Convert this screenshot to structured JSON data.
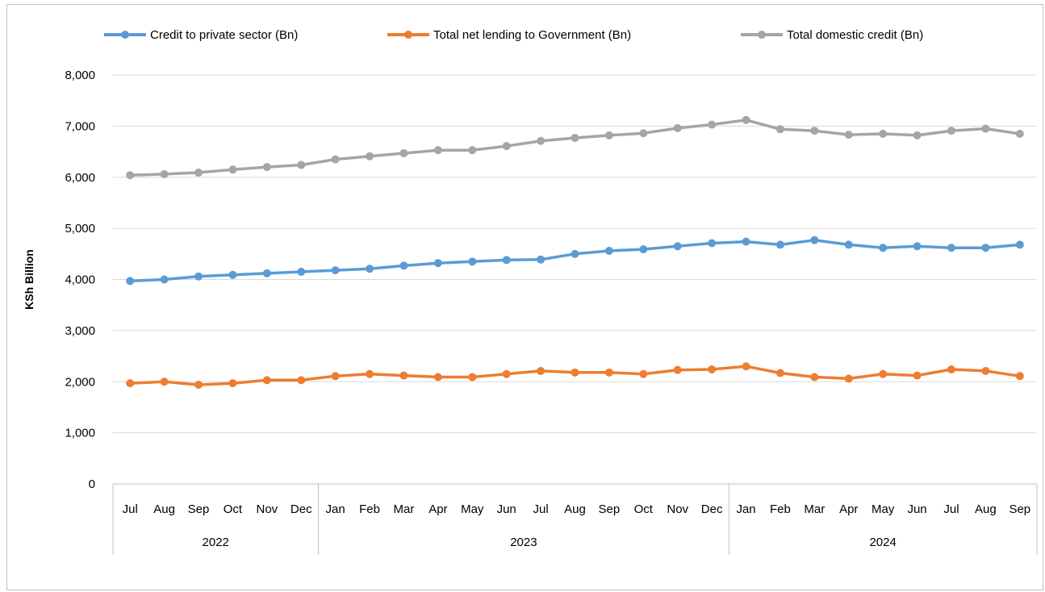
{
  "chart_data": {
    "type": "line",
    "title": "",
    "ylabel": "KSh Billion",
    "xlabel": "",
    "ylim": [
      0,
      8000
    ],
    "yticks": [
      0,
      1000,
      2000,
      3000,
      4000,
      5000,
      6000,
      7000,
      8000
    ],
    "ytick_labels": [
      "0",
      "1,000",
      "2,000",
      "3,000",
      "4,000",
      "5,000",
      "6,000",
      "7,000",
      "8,000"
    ],
    "grid": true,
    "legend_position": "top",
    "categories": [
      "Jul",
      "Aug",
      "Sep",
      "Oct",
      "Nov",
      "Dec",
      "Jan",
      "Feb",
      "Mar",
      "Apr",
      "May",
      "Jun",
      "Jul",
      "Aug",
      "Sep",
      "Oct",
      "Nov",
      "Dec",
      "Jan",
      "Feb",
      "Mar",
      "Apr",
      "May",
      "Jun",
      "Jul",
      "Aug",
      "Sep"
    ],
    "year_groups": [
      {
        "label": "2022",
        "start": 0,
        "end": 5
      },
      {
        "label": "2023",
        "start": 6,
        "end": 17
      },
      {
        "label": "2024",
        "start": 18,
        "end": 26
      }
    ],
    "series": [
      {
        "name": "Credit to private sector (Bn)",
        "color": "#5b9bd5",
        "values": [
          3970,
          4000,
          4060,
          4090,
          4120,
          4150,
          4180,
          4210,
          4270,
          4320,
          4350,
          4380,
          4390,
          4500,
          4560,
          4590,
          4650,
          4710,
          4740,
          4680,
          4770,
          4680,
          4620,
          4650,
          4620,
          4620,
          4680
        ]
      },
      {
        "name": "Total net lending to Government (Bn)",
        "color": "#ed7d31",
        "values": [
          1970,
          2000,
          1940,
          1970,
          2030,
          2030,
          2110,
          2150,
          2120,
          2090,
          2090,
          2150,
          2210,
          2180,
          2180,
          2150,
          2230,
          2240,
          2300,
          2170,
          2090,
          2060,
          2150,
          2120,
          2240,
          2210,
          2110
        ]
      },
      {
        "name": "Total domestic credit (Bn)",
        "color": "#a5a5a5",
        "values": [
          6040,
          6060,
          6090,
          6150,
          6200,
          6240,
          6350,
          6410,
          6470,
          6530,
          6530,
          6610,
          6710,
          6770,
          6820,
          6860,
          6960,
          7030,
          7120,
          6940,
          6910,
          6830,
          6850,
          6820,
          6910,
          6950,
          6850
        ]
      }
    ]
  }
}
